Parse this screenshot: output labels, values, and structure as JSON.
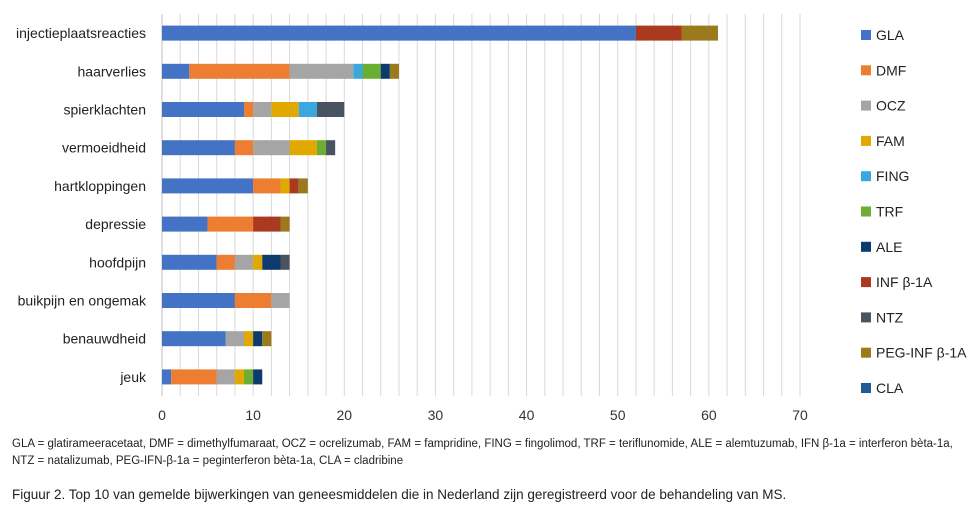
{
  "chart_data": {
    "type": "bar",
    "orientation": "horizontal",
    "stacked": true,
    "categories": [
      "injectieplaatsreacties",
      "haarverlies",
      "spierklachten",
      "vermoeidheid",
      "hartkloppingen",
      "depressie",
      "hoofdpijn",
      "buikpijn en ongemak",
      "benauwdheid",
      "jeuk"
    ],
    "series": [
      {
        "name": "GLA",
        "color": "#4472c4",
        "values": [
          52,
          3,
          9,
          8,
          10,
          5,
          6,
          8,
          7,
          1
        ]
      },
      {
        "name": "DMF",
        "color": "#ed7d31",
        "values": [
          0,
          11,
          1,
          2,
          3,
          5,
          2,
          4,
          0,
          5
        ]
      },
      {
        "name": "OCZ",
        "color": "#a5a5a5",
        "values": [
          0,
          7,
          2,
          4,
          0,
          0,
          2,
          2,
          2,
          2
        ]
      },
      {
        "name": "FAM",
        "color": "#e0a800",
        "values": [
          0,
          0,
          3,
          3,
          1,
          0,
          1,
          0,
          1,
          1
        ]
      },
      {
        "name": "FING",
        "color": "#3aa8de",
        "values": [
          0,
          1,
          2,
          0,
          0,
          0,
          0,
          0,
          0,
          0
        ]
      },
      {
        "name": "TRF",
        "color": "#6aaf32",
        "values": [
          0,
          2,
          0,
          1,
          0,
          0,
          0,
          0,
          0,
          1
        ]
      },
      {
        "name": "ALE",
        "color": "#0d3b6e",
        "values": [
          0,
          1,
          0,
          0,
          0,
          0,
          2,
          0,
          1,
          1
        ]
      },
      {
        "name": "INF β-1A",
        "color": "#a93a1f",
        "values": [
          5,
          0,
          0,
          0,
          1,
          3,
          0,
          0,
          0,
          0
        ]
      },
      {
        "name": "NTZ",
        "color": "#4a5360",
        "values": [
          0,
          0,
          3,
          1,
          0,
          0,
          1,
          0,
          0,
          0
        ]
      },
      {
        "name": "PEG-INF β-1A",
        "color": "#9b7a1e",
        "values": [
          4,
          1,
          0,
          0,
          1,
          1,
          0,
          0,
          1,
          0
        ]
      },
      {
        "name": "CLA",
        "color": "#1e5c94",
        "values": [
          0,
          0,
          0,
          0,
          0,
          0,
          0,
          0,
          0,
          0
        ]
      }
    ],
    "xlim": [
      0,
      70
    ],
    "xticks": [
      "0",
      "10",
      "20",
      "30",
      "40",
      "50",
      "60",
      "70"
    ],
    "grid": true,
    "legend": "right",
    "title": "",
    "xlabel": "",
    "ylabel": ""
  },
  "footnote": "GLA = glatirameeracetaat, DMF = dimethylfumaraat, OCZ = ocrelizumab, FAM = fampridine, FING = fingolimod, TRF = teriflunomide, ALE = alemtuzumab, IFN β-1a = interferon bèta-1a, NTZ = natalizumab, PEG-IFN-β-1a = peginterferon bèta-1a, CLA = cladribine",
  "caption": "Figuur 2. Top 10 van gemelde bijwerkingen van geneesmiddelen die in Nederland zijn geregistreerd voor de behandeling van MS."
}
